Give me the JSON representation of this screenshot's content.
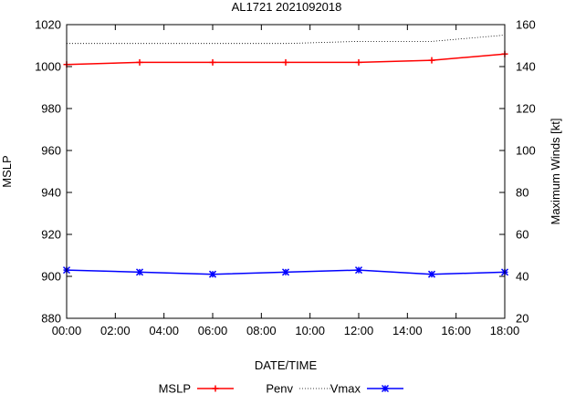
{
  "chart_data": {
    "type": "line",
    "title": "AL1721 2021092018",
    "xlabel": "DATE/TIME",
    "ylabel": "MSLP",
    "y2label": "Maximum Winds [kt]",
    "x": [
      "00:00",
      "03:00",
      "06:00",
      "09:00",
      "12:00",
      "15:00",
      "18:00"
    ],
    "x_hours": [
      0,
      3,
      6,
      9,
      12,
      15,
      18
    ],
    "xlim": [
      0,
      18
    ],
    "xticks": [
      "00:00",
      "02:00",
      "04:00",
      "06:00",
      "08:00",
      "10:00",
      "12:00",
      "14:00",
      "16:00",
      "18:00"
    ],
    "ylim": [
      880,
      1020
    ],
    "yticks": [
      880,
      900,
      920,
      940,
      960,
      980,
      1000,
      1020
    ],
    "y2lim": [
      20,
      160
    ],
    "y2ticks": [
      20,
      40,
      60,
      80,
      100,
      120,
      140,
      160
    ],
    "legend_position": "bottom",
    "series": [
      {
        "name": "MSLP",
        "axis": "y",
        "color": "#ff0000",
        "style": "line",
        "marker": "plus",
        "values": [
          1001,
          1002,
          1002,
          1002,
          1002,
          1003,
          1006
        ]
      },
      {
        "name": "Penv",
        "axis": "y",
        "color": "#000000",
        "style": "dotted",
        "marker": "none",
        "values": [
          1011,
          1011,
          1011,
          1011,
          1012,
          1012,
          1015
        ]
      },
      {
        "name": "Vmax",
        "axis": "y2",
        "color": "#0000ff",
        "style": "line",
        "marker": "star",
        "values": [
          43,
          42,
          41,
          42,
          43,
          41,
          42
        ]
      }
    ]
  }
}
